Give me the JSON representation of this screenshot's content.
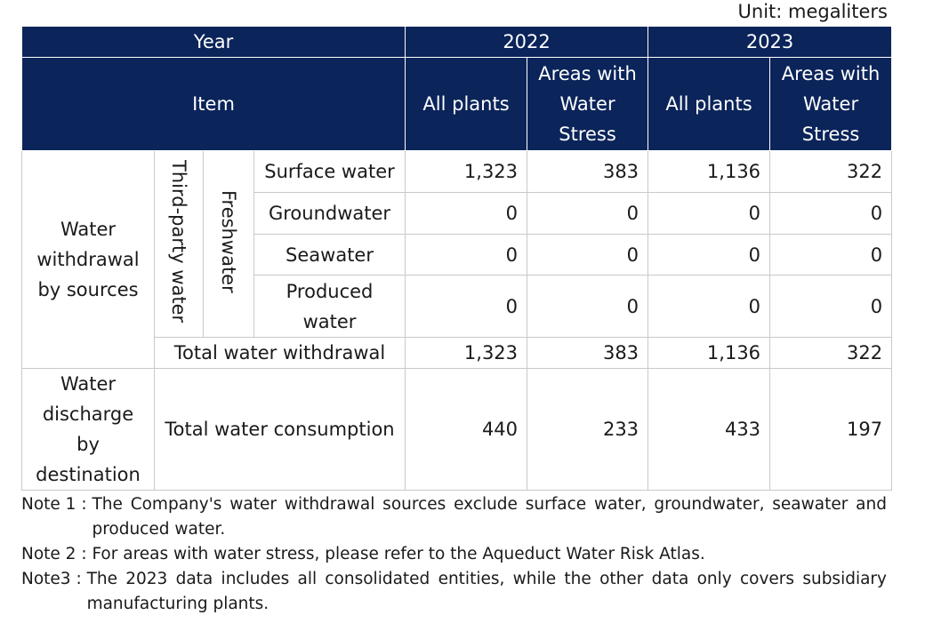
{
  "unit_label": "Unit: megaliters",
  "header": {
    "year_label": "Year",
    "item_label": "Item",
    "year_2022": "2022",
    "year_2023": "2023",
    "all_plants": "All plants",
    "water_stress": "Areas with Water Stress"
  },
  "withdrawal": {
    "group_label": "Water withdrawal by sources",
    "third_party": "Third-party water",
    "freshwater": "Freshwater",
    "rows": [
      {
        "label": "Surface water",
        "v2022_all": "1,323",
        "v2022_ws": "383",
        "v2023_all": "1,136",
        "v2023_ws": "322"
      },
      {
        "label": "Groundwater",
        "v2022_all": "0",
        "v2022_ws": "0",
        "v2023_all": "0",
        "v2023_ws": "0"
      },
      {
        "label": "Seawater",
        "v2022_all": "0",
        "v2022_ws": "0",
        "v2023_all": "0",
        "v2023_ws": "0"
      },
      {
        "label": "Produced water",
        "v2022_all": "0",
        "v2022_ws": "0",
        "v2023_all": "0",
        "v2023_ws": "0"
      }
    ],
    "total": {
      "label": "Total water withdrawal",
      "v2022_all": "1,323",
      "v2022_ws": "383",
      "v2023_all": "1,136",
      "v2023_ws": "322"
    }
  },
  "discharge": {
    "group_label": "Water discharge by destination",
    "total": {
      "label": "Total water consumption",
      "v2022_all": "440",
      "v2022_ws": "233",
      "v2023_all": "433",
      "v2023_ws": "197"
    }
  },
  "notes": [
    {
      "label": "Note 1 : ",
      "text": "The Company's water withdrawal sources exclude surface water, groundwater, seawater and produced water."
    },
    {
      "label": "Note 2 : ",
      "text": "For areas with water stress, please refer to the Aqueduct Water Risk Atlas."
    },
    {
      "label": "Note3 : ",
      "text": "The 2023 data includes all consolidated entities, while the other data only covers subsidiary manufacturing plants."
    }
  ]
}
